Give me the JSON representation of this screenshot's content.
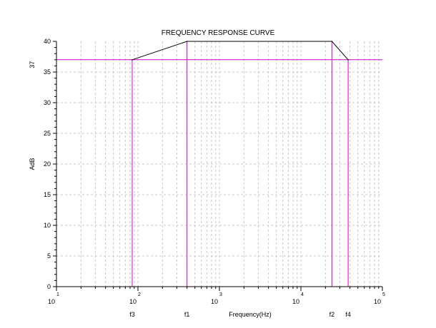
{
  "chart_data": {
    "type": "line",
    "title": "FREQUENCY RESPONSE CURVE",
    "xlabel": "Frequency(Hz)",
    "ylabel": "AdB",
    "x_scale": "log",
    "xlim": [
      10,
      100000
    ],
    "ylim": [
      0,
      40
    ],
    "yticks": [
      0,
      5,
      10,
      15,
      20,
      25,
      30,
      35,
      40
    ],
    "xticks": [
      {
        "base": "10",
        "exp": "1"
      },
      {
        "base": "10",
        "exp": "2"
      },
      {
        "base": "10",
        "exp": "3"
      },
      {
        "base": "10",
        "exp": "4"
      },
      {
        "base": "10",
        "exp": "5"
      }
    ],
    "grid": true,
    "series": [
      {
        "color": "#000000",
        "x": [
          85,
          400,
          24000,
          38000
        ],
        "y": [
          37,
          40,
          40,
          37
        ]
      }
    ],
    "reference_lines": {
      "color": "#cc00cc",
      "horizontal": [
        {
          "y": 37,
          "label": "37"
        }
      ],
      "vertical": [
        {
          "x": 85,
          "label": "f3"
        },
        {
          "x": 400,
          "label": "f1"
        },
        {
          "x": 24000,
          "label": "f2"
        },
        {
          "x": 38000,
          "label": "f4"
        }
      ]
    }
  }
}
